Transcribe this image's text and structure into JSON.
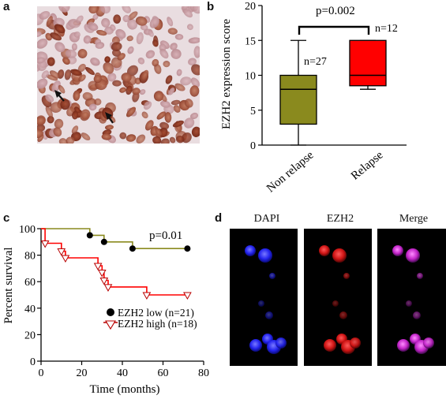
{
  "panels": {
    "a": {
      "letter": "a"
    },
    "b": {
      "letter": "b"
    },
    "c": {
      "letter": "c"
    },
    "d": {
      "letter": "d",
      "channels": [
        "DAPI",
        "EZH2",
        "Merge"
      ]
    }
  },
  "colors": {
    "olive": "#8a8a1e",
    "red": "#ff0000",
    "dark_red": "#b80000",
    "black": "#000000"
  },
  "chart_data": [
    {
      "panel": "b",
      "type": "box",
      "ylabel": "EZH2 expression score",
      "ylim": [
        0,
        20
      ],
      "yticks": [
        0,
        5,
        10,
        15,
        20
      ],
      "categories": [
        "Non relapse",
        "Relapse"
      ],
      "boxes": [
        {
          "category": "Non relapse",
          "n_label": "n=27",
          "color": "#8a8a1e",
          "min": 0,
          "q1": 3,
          "median": 8,
          "q3": 10,
          "max": 15
        },
        {
          "category": "Relapse",
          "n_label": "n=12",
          "color": "#ff0000",
          "min": 8,
          "q1": 8.5,
          "median": 10,
          "q3": 15,
          "max": 15
        }
      ],
      "annotation": "p=0.002"
    },
    {
      "panel": "c",
      "type": "line",
      "subtype": "kaplan-meier",
      "xlabel": "Time (months)",
      "ylabel": "Percent survival",
      "xlim": [
        0,
        80
      ],
      "ylim": [
        0,
        100
      ],
      "xticks": [
        0,
        20,
        40,
        60,
        80
      ],
      "yticks": [
        0,
        20,
        40,
        60,
        80,
        100
      ],
      "annotation": "p=0.01",
      "legend_position": "bottom-right",
      "series": [
        {
          "name": "EZH2 low (n=21)",
          "color": "#8a8a1e",
          "marker": "circle",
          "steps": [
            [
              0,
              100
            ],
            [
              24,
              100
            ],
            [
              24,
              95
            ],
            [
              31,
              95
            ],
            [
              31,
              90
            ],
            [
              45,
              90
            ],
            [
              45,
              85
            ],
            [
              72,
              85
            ]
          ],
          "censored": [
            [
              24,
              95
            ],
            [
              31,
              90
            ],
            [
              45,
              85
            ],
            [
              72,
              85
            ]
          ]
        },
        {
          "name": "EZH2 high (n=18)",
          "color": "#ff0000",
          "marker": "triangle-down",
          "steps": [
            [
              0,
              100
            ],
            [
              2,
              100
            ],
            [
              2,
              89
            ],
            [
              10,
              89
            ],
            [
              10,
              83
            ],
            [
              12,
              83
            ],
            [
              12,
              78
            ],
            [
              28,
              78
            ],
            [
              28,
              72
            ],
            [
              30,
              72
            ],
            [
              30,
              67
            ],
            [
              31,
              67
            ],
            [
              31,
              61
            ],
            [
              33,
              61
            ],
            [
              33,
              56
            ],
            [
              52,
              56
            ],
            [
              52,
              50
            ],
            [
              72,
              50
            ]
          ],
          "censored": [
            [
              2,
              89
            ],
            [
              10,
              83
            ],
            [
              12,
              78
            ],
            [
              28,
              72
            ],
            [
              30,
              67
            ],
            [
              31,
              61
            ],
            [
              33,
              56
            ],
            [
              52,
              50
            ],
            [
              72,
              50
            ]
          ]
        }
      ]
    }
  ]
}
